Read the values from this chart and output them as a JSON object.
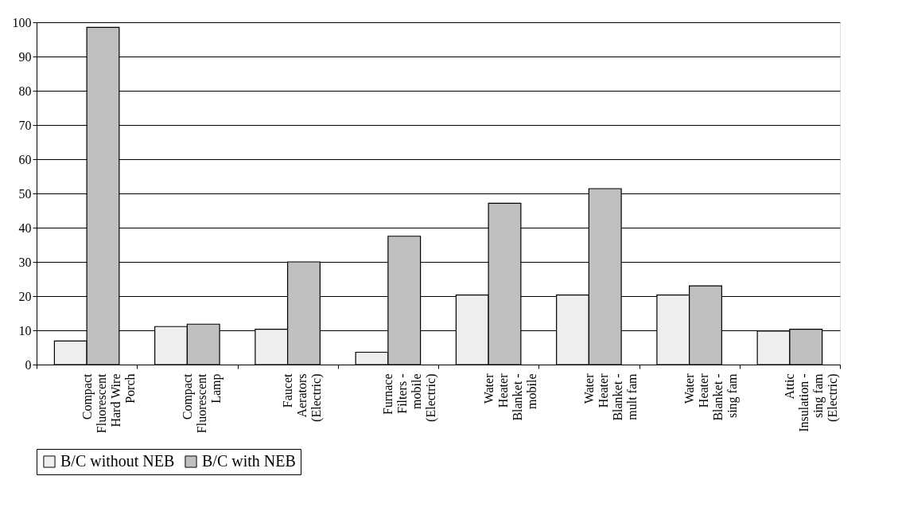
{
  "chart_data": {
    "type": "bar",
    "categories": [
      "Compact Fluorescent Hard Wire Porch",
      "Compact Fluorescent Lamp",
      "Faucet Aerators (Electric)",
      "Furnace Filters - mobile (Electric)",
      "Water Heater Blanket - mobile",
      "Water Heater Blanket - mult fam",
      "Water Heater Blanket - sing fam",
      "Attic Insulation - sing fam (Electric)"
    ],
    "series": [
      {
        "name": "B/C without NEB",
        "color": "#eeeeee",
        "values": [
          6.9,
          11.1,
          10.3,
          3.6,
          20.3,
          20.3,
          20.3,
          9.8
        ]
      },
      {
        "name": "B/C with NEB",
        "color": "#c0c0c0",
        "values": [
          98.5,
          11.8,
          30.0,
          37.5,
          47.1,
          51.4,
          23.0,
          10.3
        ]
      }
    ],
    "ylim": [
      0,
      100
    ],
    "yticks": [
      0,
      10,
      20,
      30,
      40,
      50,
      60,
      70,
      80,
      90,
      100
    ],
    "grid": "y",
    "legend": "bottom"
  }
}
